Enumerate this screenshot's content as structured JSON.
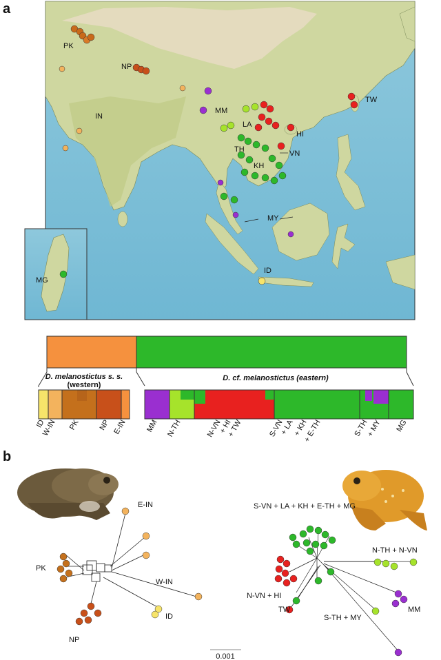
{
  "panel_a": {
    "letter": "a",
    "map_labels": {
      "PK": "PK",
      "NP": "NP",
      "IN": "IN",
      "MM": "MM",
      "LA": "LA",
      "HI": "HI",
      "TH": "TH",
      "VN": "VN",
      "KH": "KH",
      "TW": "TW",
      "MY": "MY",
      "ID": "ID",
      "MG": "MG"
    },
    "groups": {
      "western": "D. melanostictus s. s.",
      "western_sub": "(western)",
      "eastern": "D. cf. melanostictus (eastern)"
    },
    "west_labels": [
      "ID",
      "W-IN",
      "PK",
      "NP",
      "E-IN"
    ],
    "east_labels": [
      "MM",
      "N-TH",
      "N-VN",
      "+ HI",
      "+ TW",
      "S-VN",
      "+ LA",
      "+ KH",
      "+ E-TH",
      "S-TH",
      "+ MY",
      "MG"
    ],
    "colors": {
      "orange": "#f5913e",
      "green": "#2db82a",
      "red": "#e8211f",
      "purple": "#9a2fd0",
      "lightgreen": "#a6e32b",
      "yellow": "#f7e46a",
      "brown": "#c4701c",
      "darkorange": "#c8501a",
      "lightorange": "#f3b35d"
    }
  },
  "panel_b": {
    "letter": "b",
    "net_labels": {
      "E-IN": "E-IN",
      "PK": "PK",
      "W-IN": "W-IN",
      "ID": "ID",
      "NP": "NP",
      "east_top": "S-VN + LA + KH + E-TH + MG",
      "nth": "N-TH + N-VN",
      "nvn": "N-VN + HI",
      "tw": "TW",
      "sth": "S-TH + MY",
      "mm": "MM"
    },
    "scale": "0.001"
  }
}
